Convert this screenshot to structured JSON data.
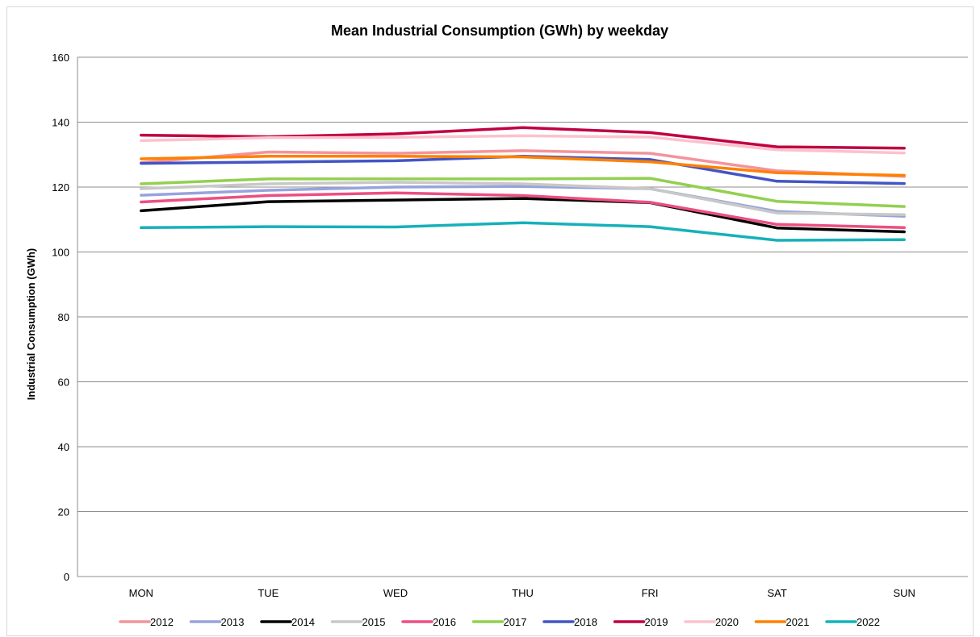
{
  "chart_data": {
    "type": "line",
    "title": "Mean Industrial Consumption (GWh) by weekday",
    "xlabel": "",
    "ylabel": "Industrial Consumption (GWh)",
    "ylim": [
      0,
      160
    ],
    "yticks": [
      0,
      20,
      40,
      60,
      80,
      100,
      120,
      140,
      160
    ],
    "grid": true,
    "legend": "bottom",
    "categories": [
      "MON",
      "TUE",
      "WED",
      "THU",
      "FRI",
      "SAT",
      "SUN"
    ],
    "series": [
      {
        "name": "2012",
        "color": "#F4939B",
        "values": [
          127.5,
          130.8,
          130.4,
          131.2,
          130.4,
          125.0,
          123.3
        ]
      },
      {
        "name": "2013",
        "color": "#98A3DC",
        "values": [
          117.5,
          119.0,
          120.0,
          120.2,
          119.5,
          112.5,
          111.0
        ]
      },
      {
        "name": "2014",
        "color": "#000000",
        "values": [
          112.7,
          115.5,
          116.0,
          116.5,
          115.2,
          107.4,
          106.2
        ]
      },
      {
        "name": "2015",
        "color": "#C8C8C8",
        "values": [
          119.5,
          121.0,
          121.5,
          121.0,
          119.5,
          112.0,
          111.5
        ]
      },
      {
        "name": "2016",
        "color": "#EC4F80",
        "values": [
          115.4,
          117.4,
          118.2,
          117.4,
          115.3,
          108.5,
          107.5
        ]
      },
      {
        "name": "2017",
        "color": "#92D050",
        "values": [
          121.0,
          122.5,
          122.5,
          122.5,
          122.7,
          115.6,
          114.0
        ]
      },
      {
        "name": "2018",
        "color": "#4355C4",
        "values": [
          127.3,
          127.7,
          128.1,
          129.5,
          128.5,
          121.8,
          121.1
        ]
      },
      {
        "name": "2019",
        "color": "#C00040",
        "values": [
          136.0,
          135.5,
          136.4,
          138.3,
          136.8,
          132.4,
          132.0
        ]
      },
      {
        "name": "2020",
        "color": "#FBC2CE",
        "values": [
          134.3,
          135.2,
          135.3,
          135.8,
          135.4,
          131.5,
          130.5
        ]
      },
      {
        "name": "2021",
        "color": "#FF8000",
        "values": [
          128.7,
          129.5,
          129.5,
          129.3,
          127.8,
          124.4,
          123.6
        ]
      },
      {
        "name": "2022",
        "color": "#17B0BA",
        "values": [
          107.5,
          107.8,
          107.7,
          109.0,
          107.8,
          103.6,
          103.8
        ]
      }
    ]
  }
}
